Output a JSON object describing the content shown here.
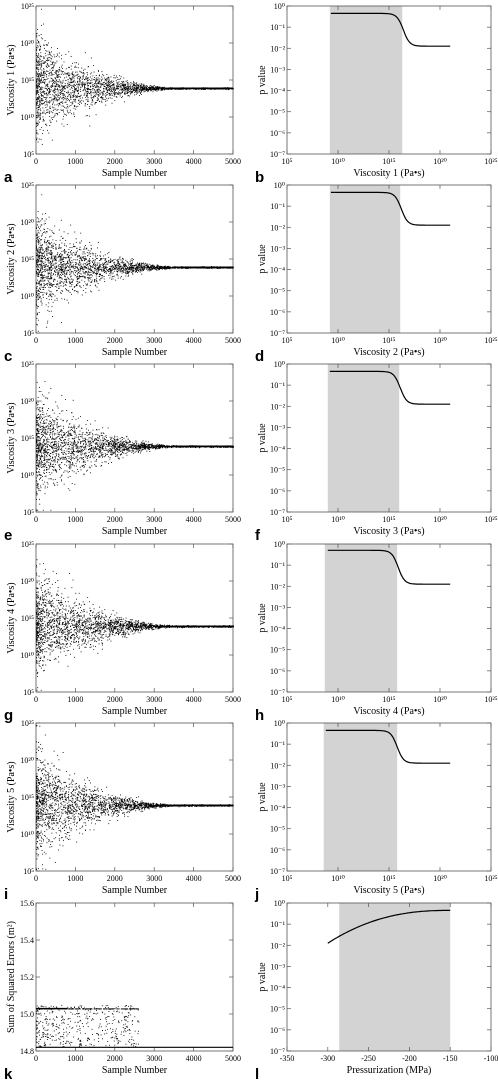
{
  "chart_data": [
    {
      "panel": "a",
      "type": "scatter",
      "xlabel": "Sample Number",
      "ylabel": "Viscosity 1 (Pa•s)",
      "x_ticks": [
        "0",
        "1000",
        "2000",
        "3000",
        "4000",
        "5000"
      ],
      "y_ticks": [
        "10⁵",
        "10¹⁰",
        "10¹⁵",
        "10²⁰",
        "10²⁵"
      ],
      "xlim": [
        0,
        5000
      ],
      "ylim": [
        5,
        25
      ],
      "y_scale": "log",
      "converged_log10_value": 13.9,
      "initial_spread_log10": 3.2,
      "burn_in_samples": 3500
    },
    {
      "panel": "b",
      "type": "line",
      "xlabel": "Viscosity 1 (Pa•s)",
      "ylabel": "p value",
      "x_ticks": [
        "10⁵",
        "10¹⁰",
        "10¹⁵",
        "10²⁰",
        "10²⁵"
      ],
      "y_ticks": [
        "10⁰",
        "10⁻¹",
        "10⁻²",
        "10⁻³",
        "10⁻⁴",
        "10⁻⁵",
        "10⁻⁶",
        "10⁻⁷"
      ],
      "xlim": [
        5,
        25
      ],
      "ylim": [
        -7,
        0
      ],
      "x_scale": "log",
      "y_scale": "log",
      "shaded_range_log10": [
        9.2,
        16.3
      ],
      "curve": {
        "high_log10_p": -0.35,
        "low_log10_p": -1.9,
        "transition_log10_x": 16.4,
        "x_start": 9.3,
        "x_end": 21.0
      }
    },
    {
      "panel": "c",
      "type": "scatter",
      "xlabel": "Sample Number",
      "ylabel": "Viscosity 2 (Pa•s)",
      "x_ticks": [
        "0",
        "1000",
        "2000",
        "3000",
        "4000",
        "5000"
      ],
      "y_ticks": [
        "10⁵",
        "10¹⁰",
        "10¹⁵",
        "10²⁰",
        "10²⁵"
      ],
      "xlim": [
        0,
        5000
      ],
      "ylim": [
        5,
        25
      ],
      "y_scale": "log",
      "converged_log10_value": 13.9,
      "initial_spread_log10": 3.2,
      "burn_in_samples": 3500
    },
    {
      "panel": "d",
      "type": "line",
      "xlabel": "Viscosity 2 (Pa•s)",
      "ylabel": "p value",
      "x_ticks": [
        "10⁵",
        "10¹⁰",
        "10¹⁵",
        "10²⁰",
        "10²⁵"
      ],
      "y_ticks": [
        "10⁰",
        "10⁻¹",
        "10⁻²",
        "10⁻³",
        "10⁻⁴",
        "10⁻⁵",
        "10⁻⁶",
        "10⁻⁷"
      ],
      "xlim": [
        5,
        25
      ],
      "ylim": [
        -7,
        0
      ],
      "x_scale": "log",
      "y_scale": "log",
      "shaded_range_log10": [
        9.2,
        16.1
      ],
      "curve": {
        "high_log10_p": -0.35,
        "low_log10_p": -1.9,
        "transition_log10_x": 16.2,
        "x_start": 9.3,
        "x_end": 21.0
      }
    },
    {
      "panel": "e",
      "type": "scatter",
      "xlabel": "Sample Number",
      "ylabel": "Viscosity 3 (Pa•s)",
      "x_ticks": [
        "0",
        "1000",
        "2000",
        "3000",
        "4000",
        "5000"
      ],
      "y_ticks": [
        "10⁵",
        "10¹⁰",
        "10¹⁵",
        "10²⁰",
        "10²⁵"
      ],
      "xlim": [
        0,
        5000
      ],
      "ylim": [
        5,
        25
      ],
      "y_scale": "log",
      "converged_log10_value": 13.9,
      "initial_spread_log10": 3.2,
      "burn_in_samples": 3500
    },
    {
      "panel": "f",
      "type": "line",
      "xlabel": "Viscosity 3 (Pa•s)",
      "ylabel": "p value",
      "x_ticks": [
        "10⁵",
        "10¹⁰",
        "10¹⁵",
        "10²⁰",
        "10²⁵"
      ],
      "y_ticks": [
        "10⁰",
        "10⁻¹",
        "10⁻²",
        "10⁻³",
        "10⁻⁴",
        "10⁻⁵",
        "10⁻⁶",
        "10⁻⁷"
      ],
      "xlim": [
        5,
        25
      ],
      "ylim": [
        -7,
        0
      ],
      "x_scale": "log",
      "y_scale": "log",
      "shaded_range_log10": [
        9.0,
        16.0
      ],
      "curve": {
        "high_log10_p": -0.35,
        "low_log10_p": -1.9,
        "transition_log10_x": 16.1,
        "x_start": 9.2,
        "x_end": 21.0
      }
    },
    {
      "panel": "g",
      "type": "scatter",
      "xlabel": "Sample Number",
      "ylabel": "Viscosity 4 (Pa•s)",
      "x_ticks": [
        "0",
        "1000",
        "2000",
        "3000",
        "4000",
        "5000"
      ],
      "y_ticks": [
        "10⁵",
        "10¹⁰",
        "10¹⁵",
        "10²⁰",
        "10²⁵"
      ],
      "xlim": [
        0,
        5000
      ],
      "ylim": [
        5,
        25
      ],
      "y_scale": "log",
      "converged_log10_value": 13.9,
      "initial_spread_log10": 3.2,
      "burn_in_samples": 3500
    },
    {
      "panel": "h",
      "type": "line",
      "xlabel": "Viscosity 4 (Pa•s)",
      "ylabel": "p value",
      "x_ticks": [
        "10⁵",
        "10¹⁰",
        "10¹⁵",
        "10²⁰",
        "10²⁵"
      ],
      "y_ticks": [
        "10⁰",
        "10⁻¹",
        "10⁻²",
        "10⁻³",
        "10⁻⁴",
        "10⁻⁵",
        "10⁻⁶",
        "10⁻⁷"
      ],
      "xlim": [
        5,
        25
      ],
      "ylim": [
        -7,
        0
      ],
      "x_scale": "log",
      "y_scale": "log",
      "shaded_range_log10": [
        8.7,
        15.8
      ],
      "curve": {
        "high_log10_p": -0.3,
        "low_log10_p": -1.9,
        "transition_log10_x": 15.9,
        "x_start": 9.0,
        "x_end": 21.0
      }
    },
    {
      "panel": "i",
      "type": "scatter",
      "xlabel": "Sample Number",
      "ylabel": "Viscosity 5 (Pa•s)",
      "x_ticks": [
        "0",
        "1000",
        "2000",
        "3000",
        "4000",
        "5000"
      ],
      "y_ticks": [
        "10⁵",
        "10¹⁰",
        "10¹⁵",
        "10²⁰",
        "10²⁵"
      ],
      "xlim": [
        0,
        5000
      ],
      "ylim": [
        5,
        25
      ],
      "y_scale": "log",
      "converged_log10_value": 13.9,
      "initial_spread_log10": 3.2,
      "burn_in_samples": 3500
    },
    {
      "panel": "j",
      "type": "line",
      "xlabel": "Viscosity 5 (Pa•s)",
      "ylabel": "p value",
      "x_ticks": [
        "10⁵",
        "10¹⁰",
        "10¹⁵",
        "10²⁰",
        "10²⁵"
      ],
      "y_ticks": [
        "10⁰",
        "10⁻¹",
        "10⁻²",
        "10⁻³",
        "10⁻⁴",
        "10⁻⁵",
        "10⁻⁶",
        "10⁻⁷"
      ],
      "xlim": [
        5,
        25
      ],
      "ylim": [
        -7,
        0
      ],
      "x_scale": "log",
      "y_scale": "log",
      "shaded_range_log10": [
        8.6,
        15.8
      ],
      "curve": {
        "high_log10_p": -0.35,
        "low_log10_p": -1.9,
        "transition_log10_x": 15.8,
        "x_start": 8.8,
        "x_end": 21.0
      }
    },
    {
      "panel": "k",
      "type": "scatter",
      "xlabel": "Sample Number",
      "ylabel": "Sum of Squared Errors (m²)",
      "x_ticks": [
        "0",
        "1000",
        "2000",
        "3000",
        "4000",
        "5000"
      ],
      "y_ticks": [
        "14.8",
        "15.0",
        "15.2",
        "15.4",
        "15.6"
      ],
      "xlim": [
        0,
        5000
      ],
      "ylim": [
        14.8,
        15.6
      ],
      "floor_value": 14.82,
      "upper_band_value": 15.03,
      "spread_until_samples": 2600
    },
    {
      "panel": "l",
      "type": "line",
      "xlabel": "Pressurization (MPa)",
      "ylabel": "p value",
      "x_ticks": [
        "-350",
        "-300",
        "-250",
        "-200",
        "-150",
        "-100"
      ],
      "y_ticks": [
        "10⁰",
        "10⁻¹",
        "10⁻²",
        "10⁻³",
        "10⁻⁴",
        "10⁻⁵",
        "10⁻⁶",
        "10⁻⁷"
      ],
      "xlim": [
        -350,
        -100
      ],
      "ylim": [
        -7,
        0
      ],
      "y_scale": "log",
      "shaded_range": [
        -286,
        -150
      ],
      "curve": {
        "x_start": -300,
        "x_end": -150,
        "log10_p_start": -1.9,
        "log10_p_end": -0.35
      }
    }
  ]
}
